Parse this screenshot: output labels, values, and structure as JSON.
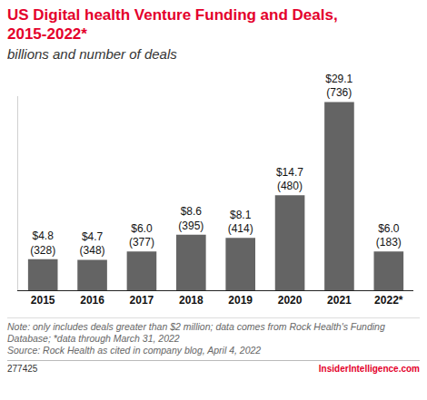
{
  "chart_data": {
    "type": "bar",
    "title": "US Digital health Venture Funding and Deals, 2015-2022*",
    "subtitle": "billions and number of deals",
    "categories": [
      "2015",
      "2016",
      "2017",
      "2018",
      "2019",
      "2020",
      "2021",
      "2022*"
    ],
    "values": [
      4.8,
      4.7,
      6.0,
      8.6,
      8.1,
      14.7,
      29.1,
      6.0
    ],
    "value_labels": [
      "$4.8\n(328)",
      "$4.7\n(348)",
      "$6.0\n(377)",
      "$8.6\n(395)",
      "$8.1\n(414)",
      "$14.7\n(480)",
      "$29.1\n(736)",
      "$6.0\n(183)"
    ],
    "color": "#646464",
    "ylim": [
      0,
      30
    ],
    "grid": false,
    "data_labels": true,
    "tick_labels": "x",
    "note": "Note: only includes deals greater than $2 million; data comes from Rock Health's Funding Database; *data through March 31, 2022",
    "source": "Source: Rock Health as cited in company blog, April 4, 2022"
  },
  "footer": {
    "id": "277425",
    "brand": "InsiderIntelligence.com"
  }
}
